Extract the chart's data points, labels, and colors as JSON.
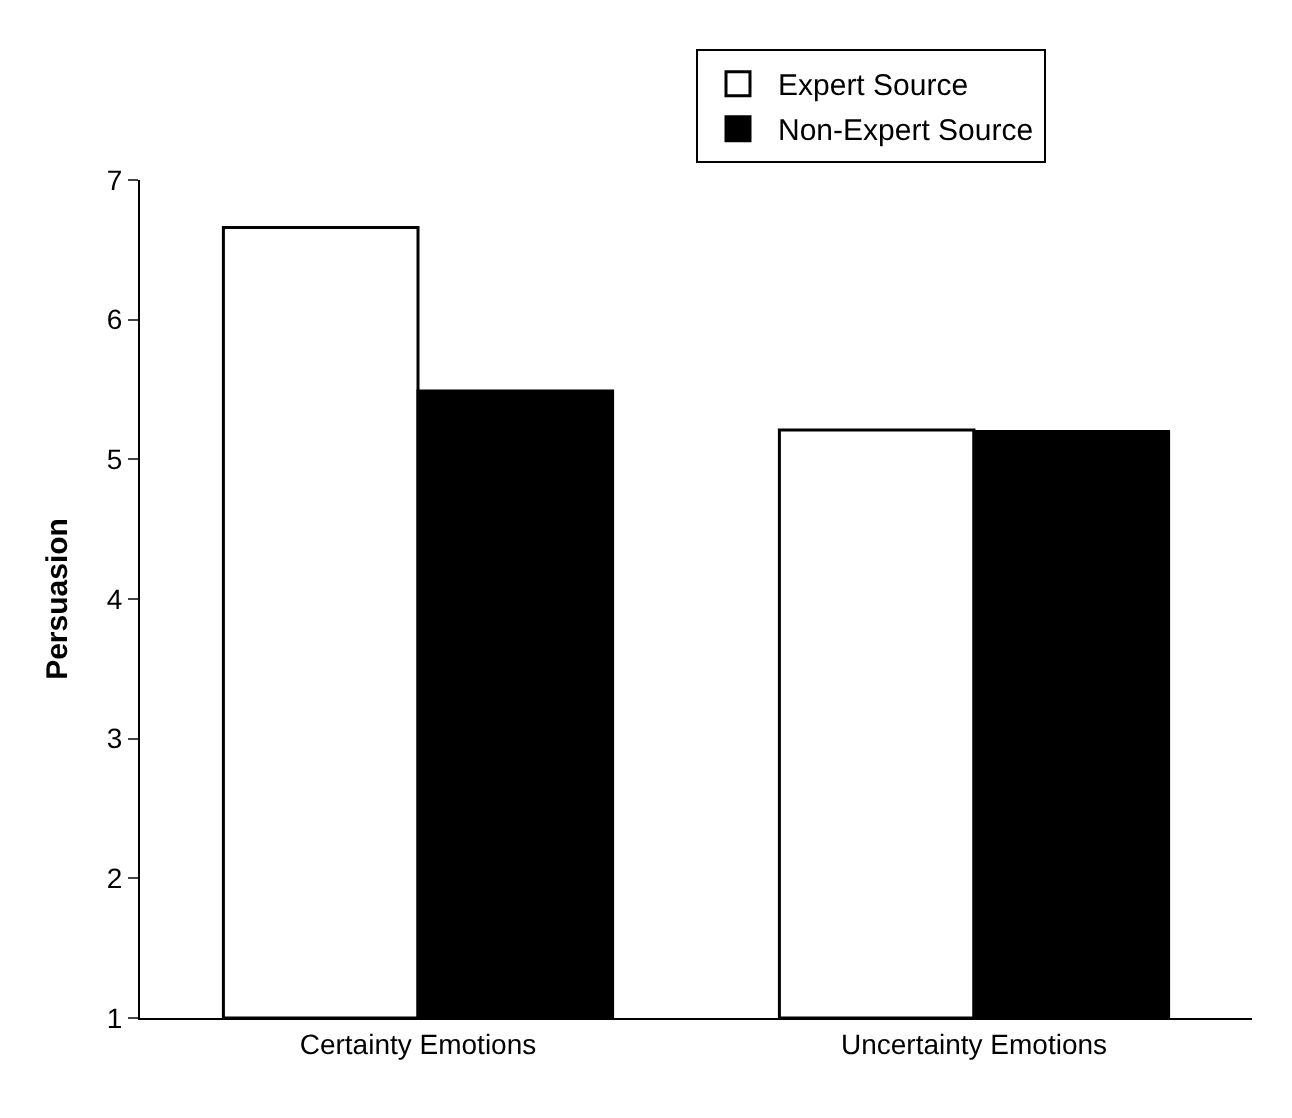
{
  "chart_data": {
    "type": "bar",
    "ylabel": "Persuasion",
    "categories": [
      "Certainty Emotions",
      "Uncertainty Emotions"
    ],
    "series": [
      {
        "name": "Expert Source",
        "color": "#ffffff",
        "values": [
          6.66,
          5.21
        ]
      },
      {
        "name": "Non-Expert Source",
        "color": "#000000",
        "values": [
          5.49,
          5.2
        ]
      }
    ],
    "ylim": [
      1,
      7
    ],
    "yticks": [
      1,
      2,
      3,
      4,
      5,
      6,
      7
    ],
    "grid": false,
    "legend": "top"
  }
}
